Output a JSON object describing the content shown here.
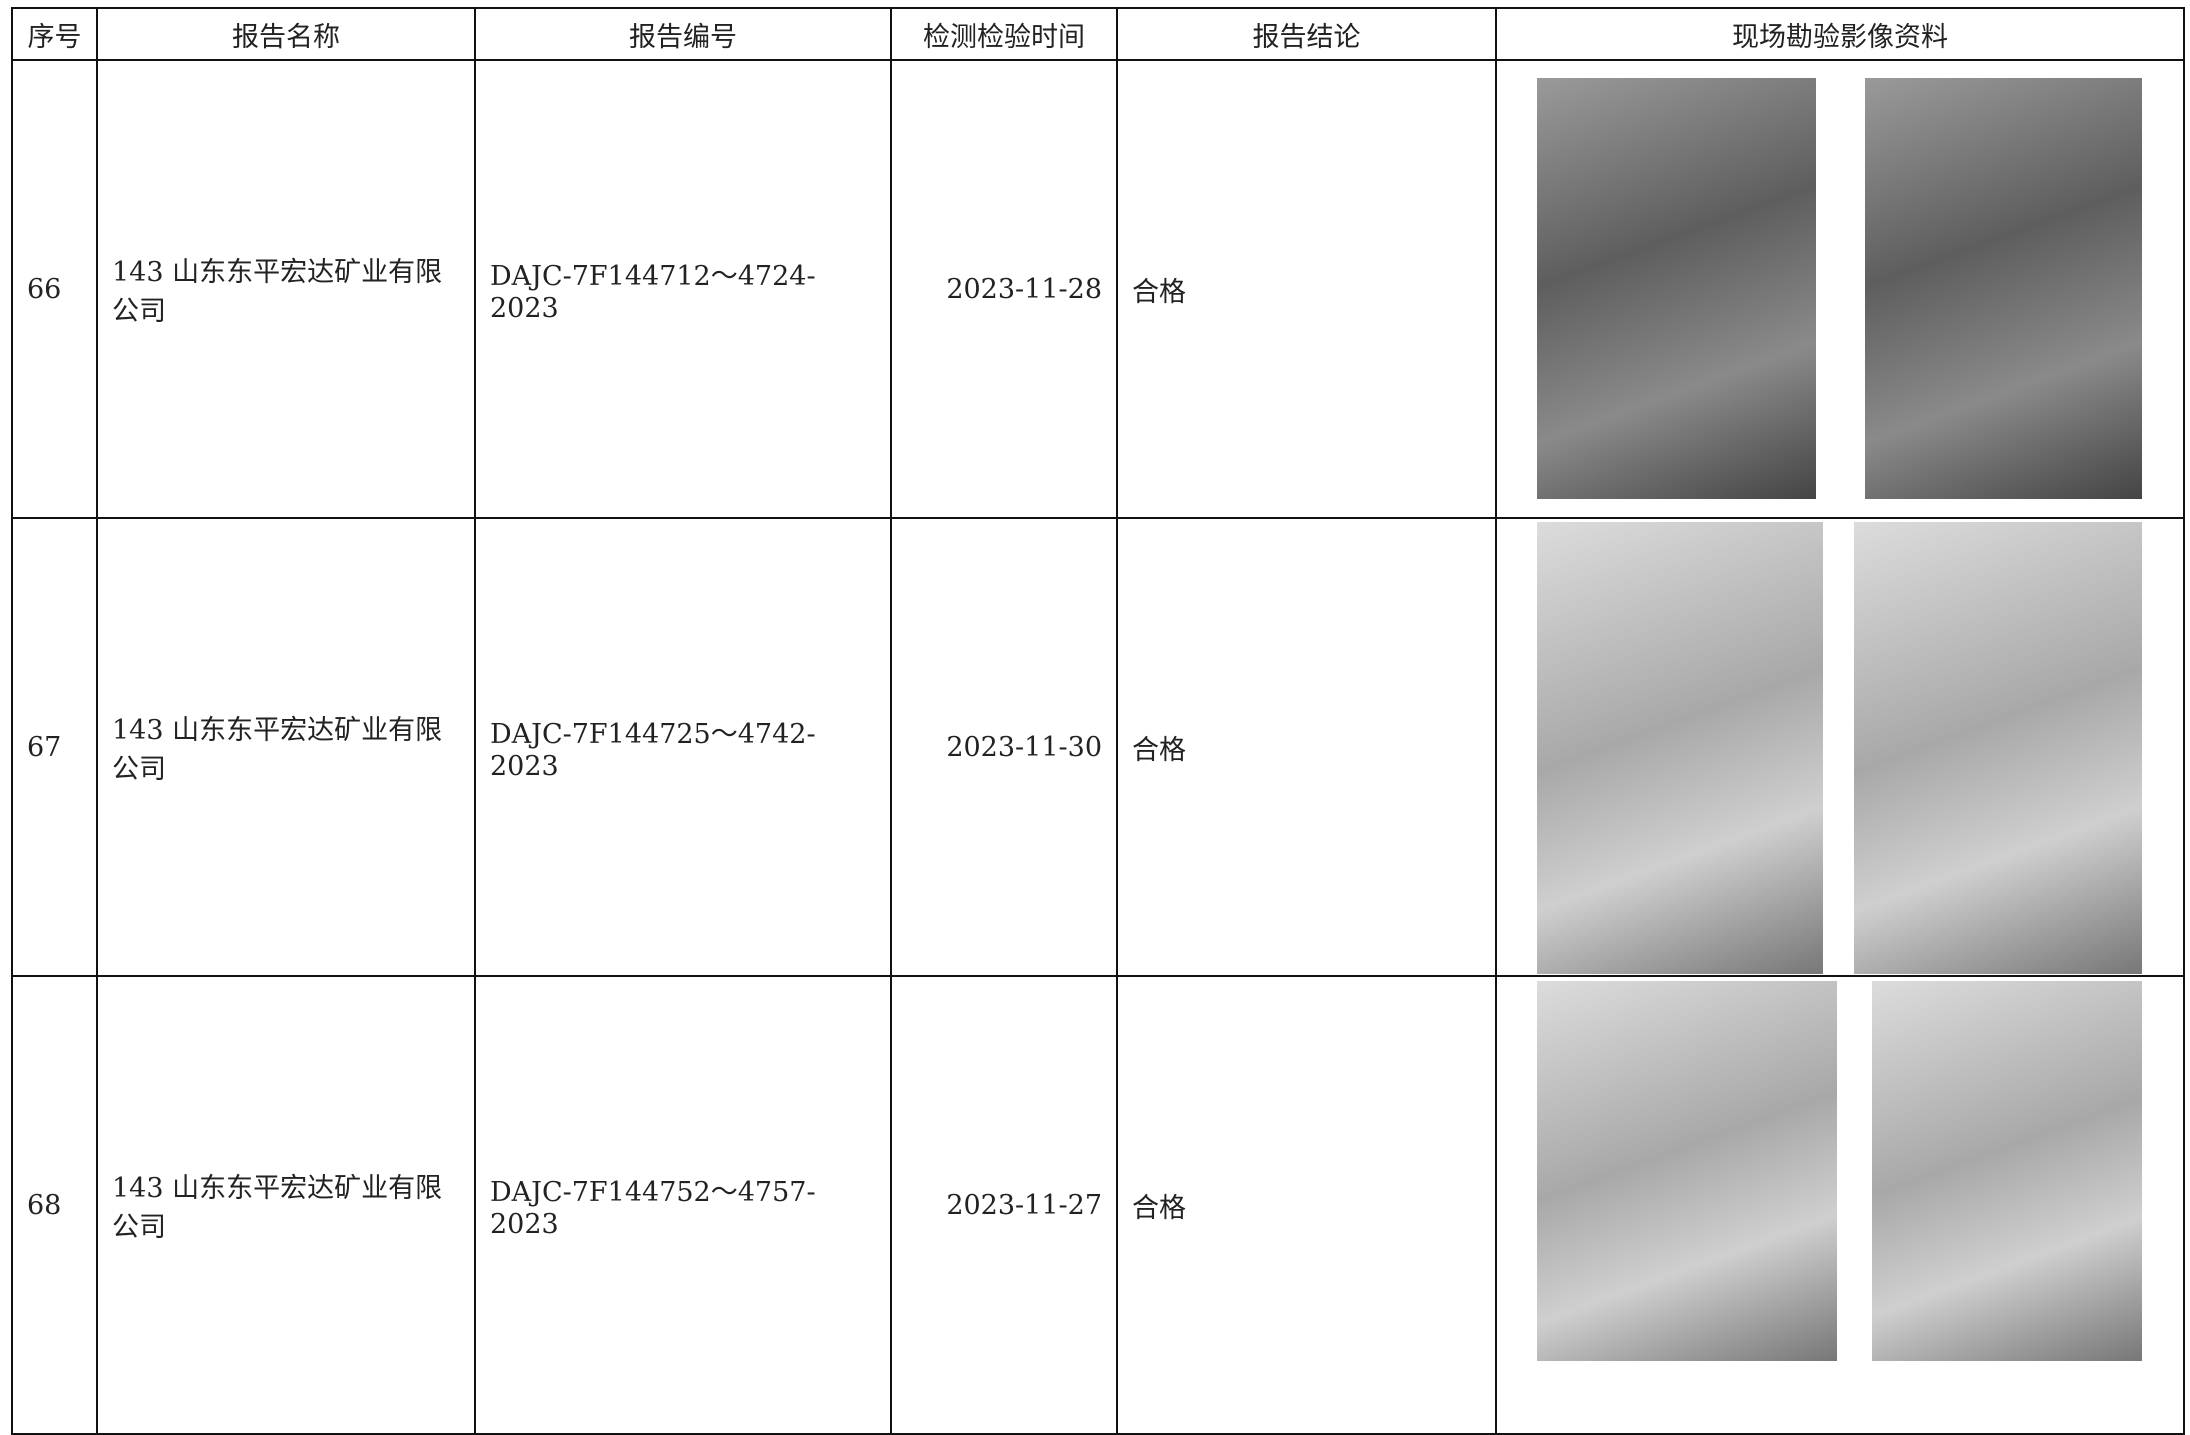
{
  "table": {
    "header": [
      "序号",
      "报告名称",
      "报告编号",
      "检测检验时间",
      "报告结论",
      "现场勘验影像资料"
    ],
    "rows": [
      [
        "66",
        "143 山东东平宏达矿业有限公司",
        "DAJC-7F144712～4724-2023",
        "2023-11-28",
        "合格"
      ],
      [
        "67",
        "143 山东东平宏达矿业有限公司",
        "DAJC-7F144725～4742-2023",
        "2023-11-30",
        "合格"
      ],
      [
        "68",
        "143 山东东平宏达矿业有限公司",
        "DAJC-7F144752～4757-2023",
        "2023-11-27",
        "合格"
      ]
    ]
  }
}
